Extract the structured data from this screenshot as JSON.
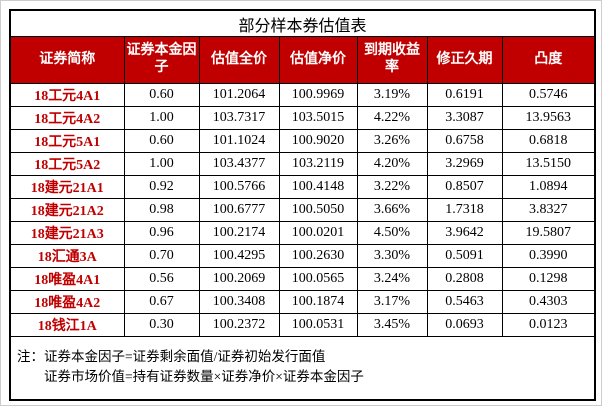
{
  "title": "部分样本券估值表",
  "colors": {
    "header_bg": "#C00000",
    "header_text": "#FFFFFF",
    "security_name_text": "#C00000",
    "border": "#000000",
    "background": "#FFFFFF"
  },
  "table": {
    "columns": [
      {
        "label": "证券简称"
      },
      {
        "label": "证券本金因子"
      },
      {
        "label": "估值全价"
      },
      {
        "label": "估值净价"
      },
      {
        "label": "到期收益率"
      },
      {
        "label": "修正久期"
      },
      {
        "label": "凸度"
      }
    ],
    "rows": [
      [
        "18工元4A1",
        "0.60",
        "101.2064",
        "100.9969",
        "3.19%",
        "0.6191",
        "0.5746"
      ],
      [
        "18工元4A2",
        "1.00",
        "103.7317",
        "103.5015",
        "4.22%",
        "3.3087",
        "13.9563"
      ],
      [
        "18工元5A1",
        "0.60",
        "101.1024",
        "100.9020",
        "3.26%",
        "0.6758",
        "0.6818"
      ],
      [
        "18工元5A2",
        "1.00",
        "103.4377",
        "103.2119",
        "4.20%",
        "3.2969",
        "13.5150"
      ],
      [
        "18建元21A1",
        "0.92",
        "100.5766",
        "100.4148",
        "3.22%",
        "0.8507",
        "1.0894"
      ],
      [
        "18建元21A2",
        "0.98",
        "100.6777",
        "100.5050",
        "3.66%",
        "1.7318",
        "3.8327"
      ],
      [
        "18建元21A3",
        "0.96",
        "100.2174",
        "100.0201",
        "4.50%",
        "3.9642",
        "19.5807"
      ],
      [
        "18汇通3A",
        "0.70",
        "100.4295",
        "100.2630",
        "3.30%",
        "0.5091",
        "0.3990"
      ],
      [
        "18唯盈4A1",
        "0.56",
        "100.2069",
        "100.0565",
        "3.24%",
        "0.2808",
        "0.1298"
      ],
      [
        "18唯盈4A2",
        "0.67",
        "100.3408",
        "100.1874",
        "3.17%",
        "0.5463",
        "0.4303"
      ],
      [
        "18钱江1A",
        "0.30",
        "100.2372",
        "100.0531",
        "3.45%",
        "0.0693",
        "0.0123"
      ]
    ],
    "notes": [
      "注：证券本金因子=证券剩余面值/证券初始发行面值",
      "证券市场价值=持有证券数量×证券净价×证券本金因子"
    ]
  }
}
